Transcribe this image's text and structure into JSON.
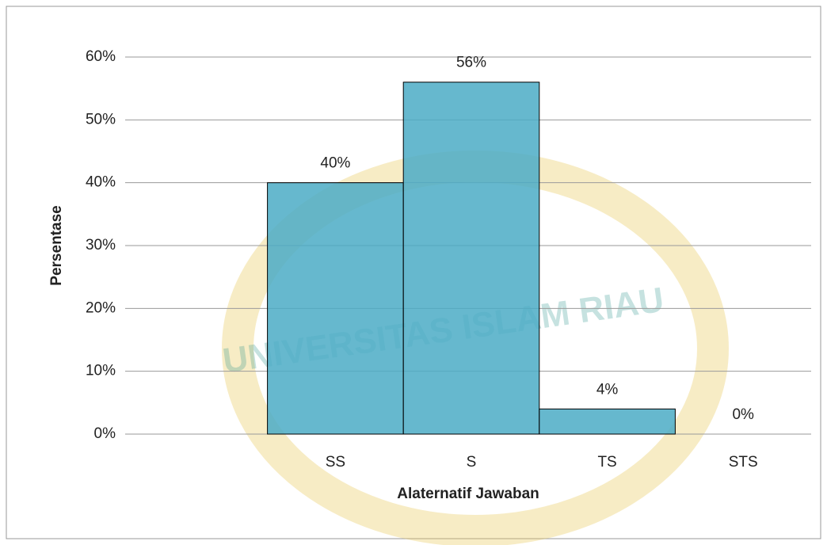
{
  "chart_data": {
    "type": "bar",
    "watermark": "UNIVERSITAS ISLAM RIAU",
    "xlabel": "Alaternatif Jawaban",
    "ylabel": "Persentase",
    "categories": [
      null,
      "SS",
      "S",
      "TS",
      "STS"
    ],
    "values": [
      null,
      40,
      56,
      4,
      0
    ],
    "value_labels": [
      null,
      "40%",
      "56%",
      "4%",
      "0%"
    ],
    "color": "#4bacc6",
    "ylim": [
      0,
      60
    ],
    "yticks": [
      {
        "value": 0,
        "label": "0%"
      },
      {
        "value": 10,
        "label": "10%"
      },
      {
        "value": 20,
        "label": "20%"
      },
      {
        "value": 30,
        "label": "30%"
      },
      {
        "value": 40,
        "label": "40%"
      },
      {
        "value": 50,
        "label": "50%"
      },
      {
        "value": 60,
        "label": "60%"
      }
    ],
    "grid": true
  }
}
